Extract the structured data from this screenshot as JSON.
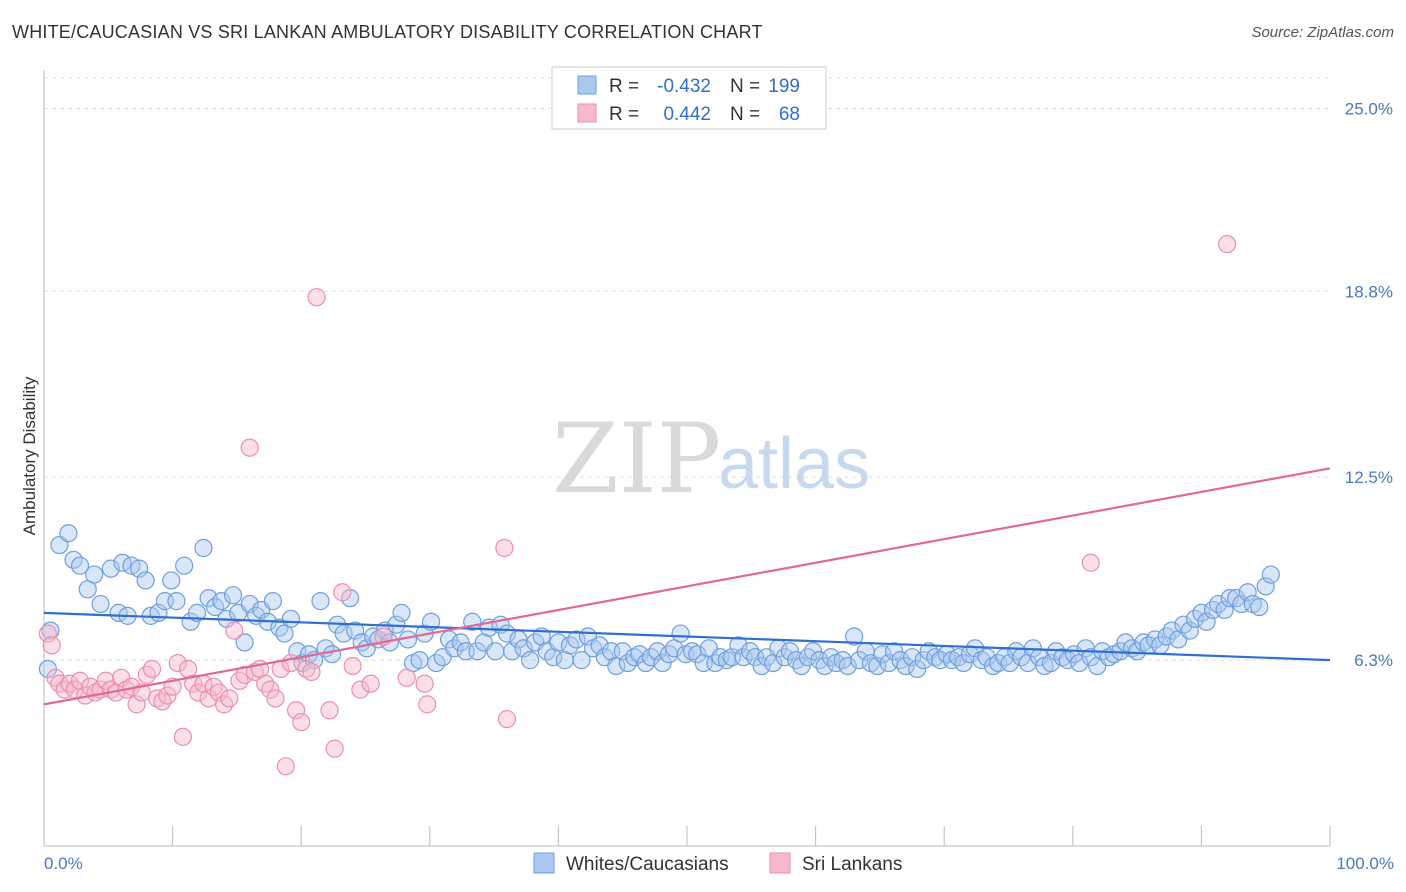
{
  "header": {
    "title": "WHITE/CAUCASIAN VS SRI LANKAN AMBULATORY DISABILITY CORRELATION CHART",
    "source": "Source: ZipAtlas.com"
  },
  "watermark": {
    "zip": "ZIP",
    "atlas": "atlas"
  },
  "colors": {
    "blue_fill": "#a9c7ef",
    "blue_stroke": "#6f9fdc",
    "blue_line": "#2f6fd0",
    "pink_fill": "#f6b8cc",
    "pink_stroke": "#ea8fae",
    "pink_line": "#e06a92",
    "grid": "#dddddd",
    "tick_label": "#4a78c0"
  },
  "legend": {
    "rows": [
      {
        "r_label": "R =",
        "r_value": "-0.432",
        "n_label": "N =",
        "n_value": "199",
        "color": "blue"
      },
      {
        "r_label": "R =",
        "r_value": "0.442",
        "n_label": "N =",
        "n_value": "68",
        "color": "pink"
      }
    ]
  },
  "chart_data": {
    "type": "scatter",
    "ylabel": "Ambulatory Disability",
    "xlim": [
      0,
      100
    ],
    "ylim": [
      0,
      26.3
    ],
    "x_tick_labels": [
      "0.0%",
      "100.0%"
    ],
    "y_ticks": [
      6.3,
      12.5,
      18.8,
      25.0
    ],
    "y_tick_labels": [
      "6.3%",
      "12.5%",
      "18.8%",
      "25.0%"
    ],
    "grid": true,
    "legend_position": "top-center",
    "series": [
      {
        "name": "Whites/Caucasians",
        "color": "blue",
        "trend": {
          "x": [
            0,
            100
          ],
          "y": [
            7.9,
            6.3
          ]
        },
        "points": [
          [
            0.5,
            7.3
          ],
          [
            1.2,
            10.2
          ],
          [
            1.9,
            10.6
          ],
          [
            2.3,
            9.7
          ],
          [
            2.8,
            9.5
          ],
          [
            3.4,
            8.7
          ],
          [
            3.9,
            9.2
          ],
          [
            4.4,
            8.2
          ],
          [
            5.2,
            9.4
          ],
          [
            5.8,
            7.9
          ],
          [
            6.1,
            9.6
          ],
          [
            6.5,
            7.8
          ],
          [
            6.8,
            9.5
          ],
          [
            7.4,
            9.4
          ],
          [
            7.9,
            9.0
          ],
          [
            8.3,
            7.8
          ],
          [
            8.9,
            7.9
          ],
          [
            9.4,
            8.3
          ],
          [
            9.9,
            9.0
          ],
          [
            10.3,
            8.3
          ],
          [
            10.9,
            9.5
          ],
          [
            11.4,
            7.6
          ],
          [
            11.9,
            7.9
          ],
          [
            12.4,
            10.1
          ],
          [
            12.8,
            8.4
          ],
          [
            13.3,
            8.1
          ],
          [
            13.8,
            8.3
          ],
          [
            14.2,
            7.7
          ],
          [
            14.7,
            8.5
          ],
          [
            15.1,
            7.9
          ],
          [
            15.6,
            6.9
          ],
          [
            16.0,
            8.2
          ],
          [
            16.5,
            7.8
          ],
          [
            16.9,
            8.0
          ],
          [
            17.4,
            7.6
          ],
          [
            17.8,
            8.3
          ],
          [
            18.3,
            7.4
          ],
          [
            18.7,
            7.2
          ],
          [
            19.2,
            7.7
          ],
          [
            19.7,
            6.6
          ],
          [
            20.1,
            6.2
          ],
          [
            20.6,
            6.5
          ],
          [
            21.0,
            6.3
          ],
          [
            21.5,
            8.3
          ],
          [
            21.9,
            6.7
          ],
          [
            22.4,
            6.5
          ],
          [
            22.8,
            7.5
          ],
          [
            23.3,
            7.2
          ],
          [
            23.8,
            8.4
          ],
          [
            24.2,
            7.3
          ],
          [
            24.7,
            6.9
          ],
          [
            25.1,
            6.7
          ],
          [
            25.6,
            7.1
          ],
          [
            26.0,
            7.0
          ],
          [
            26.5,
            7.3
          ],
          [
            26.9,
            6.9
          ],
          [
            27.4,
            7.5
          ],
          [
            27.8,
            7.9
          ],
          [
            28.3,
            7.0
          ],
          [
            28.7,
            6.2
          ],
          [
            29.2,
            6.3
          ],
          [
            29.6,
            7.2
          ],
          [
            30.1,
            7.6
          ],
          [
            30.5,
            6.2
          ],
          [
            31.0,
            6.4
          ],
          [
            31.5,
            7.0
          ],
          [
            31.9,
            6.7
          ],
          [
            32.4,
            6.9
          ],
          [
            32.8,
            6.6
          ],
          [
            33.3,
            7.6
          ],
          [
            33.7,
            6.6
          ],
          [
            34.2,
            6.9
          ],
          [
            34.6,
            7.4
          ],
          [
            35.1,
            6.6
          ],
          [
            35.5,
            7.5
          ],
          [
            36.0,
            7.2
          ],
          [
            36.4,
            6.6
          ],
          [
            36.9,
            7.0
          ],
          [
            37.3,
            6.7
          ],
          [
            37.8,
            6.3
          ],
          [
            38.2,
            6.9
          ],
          [
            38.7,
            7.1
          ],
          [
            39.1,
            6.6
          ],
          [
            39.6,
            6.4
          ],
          [
            40.0,
            6.9
          ],
          [
            40.5,
            6.3
          ],
          [
            40.9,
            6.8
          ],
          [
            41.4,
            7.0
          ],
          [
            41.8,
            6.3
          ],
          [
            42.3,
            7.1
          ],
          [
            42.7,
            6.7
          ],
          [
            43.2,
            6.8
          ],
          [
            43.6,
            6.4
          ],
          [
            44.1,
            6.6
          ],
          [
            44.5,
            6.1
          ],
          [
            45.0,
            6.6
          ],
          [
            45.4,
            6.2
          ],
          [
            45.9,
            6.4
          ],
          [
            46.3,
            6.5
          ],
          [
            46.8,
            6.2
          ],
          [
            47.2,
            6.4
          ],
          [
            47.7,
            6.6
          ],
          [
            48.1,
            6.2
          ],
          [
            48.6,
            6.5
          ],
          [
            49.0,
            6.7
          ],
          [
            49.5,
            7.2
          ],
          [
            49.9,
            6.5
          ],
          [
            50.4,
            6.6
          ],
          [
            50.8,
            6.5
          ],
          [
            51.3,
            6.2
          ],
          [
            51.7,
            6.7
          ],
          [
            52.2,
            6.2
          ],
          [
            52.6,
            6.4
          ],
          [
            53.1,
            6.3
          ],
          [
            53.5,
            6.4
          ],
          [
            54.0,
            6.8
          ],
          [
            54.4,
            6.4
          ],
          [
            54.9,
            6.6
          ],
          [
            55.3,
            6.4
          ],
          [
            55.8,
            6.1
          ],
          [
            56.2,
            6.4
          ],
          [
            56.7,
            6.2
          ],
          [
            57.1,
            6.7
          ],
          [
            57.6,
            6.4
          ],
          [
            58.0,
            6.6
          ],
          [
            58.5,
            6.3
          ],
          [
            58.9,
            6.1
          ],
          [
            59.4,
            6.4
          ],
          [
            59.8,
            6.6
          ],
          [
            60.3,
            6.3
          ],
          [
            60.7,
            6.1
          ],
          [
            61.2,
            6.4
          ],
          [
            61.6,
            6.2
          ],
          [
            62.1,
            6.3
          ],
          [
            62.5,
            6.1
          ],
          [
            63.0,
            7.1
          ],
          [
            63.4,
            6.3
          ],
          [
            63.9,
            6.6
          ],
          [
            64.3,
            6.2
          ],
          [
            64.8,
            6.1
          ],
          [
            65.2,
            6.5
          ],
          [
            65.7,
            6.2
          ],
          [
            66.1,
            6.6
          ],
          [
            66.6,
            6.3
          ],
          [
            67.0,
            6.1
          ],
          [
            67.5,
            6.4
          ],
          [
            67.9,
            6.0
          ],
          [
            68.4,
            6.3
          ],
          [
            68.8,
            6.6
          ],
          [
            69.3,
            6.4
          ],
          [
            69.7,
            6.3
          ],
          [
            70.2,
            6.5
          ],
          [
            70.6,
            6.3
          ],
          [
            71.1,
            6.4
          ],
          [
            71.5,
            6.2
          ],
          [
            72.0,
            6.5
          ],
          [
            72.4,
            6.7
          ],
          [
            72.9,
            6.3
          ],
          [
            73.3,
            6.4
          ],
          [
            73.8,
            6.1
          ],
          [
            74.2,
            6.2
          ],
          [
            74.7,
            6.4
          ],
          [
            75.1,
            6.2
          ],
          [
            75.6,
            6.6
          ],
          [
            76.0,
            6.4
          ],
          [
            76.5,
            6.2
          ],
          [
            76.9,
            6.7
          ],
          [
            77.4,
            6.4
          ],
          [
            77.8,
            6.1
          ],
          [
            78.3,
            6.2
          ],
          [
            78.7,
            6.6
          ],
          [
            79.2,
            6.4
          ],
          [
            79.6,
            6.3
          ],
          [
            80.1,
            6.5
          ],
          [
            80.5,
            6.2
          ],
          [
            81.0,
            6.7
          ],
          [
            81.4,
            6.4
          ],
          [
            81.9,
            6.1
          ],
          [
            82.3,
            6.6
          ],
          [
            82.8,
            6.4
          ],
          [
            83.2,
            6.5
          ],
          [
            83.7,
            6.6
          ],
          [
            84.1,
            6.9
          ],
          [
            84.6,
            6.7
          ],
          [
            85.0,
            6.6
          ],
          [
            85.5,
            6.9
          ],
          [
            85.9,
            6.8
          ],
          [
            86.4,
            7.0
          ],
          [
            86.8,
            6.8
          ],
          [
            87.3,
            7.1
          ],
          [
            87.7,
            7.3
          ],
          [
            88.2,
            7.0
          ],
          [
            88.6,
            7.5
          ],
          [
            89.1,
            7.3
          ],
          [
            89.5,
            7.7
          ],
          [
            90.0,
            7.9
          ],
          [
            90.4,
            7.6
          ],
          [
            90.9,
            8.0
          ],
          [
            91.3,
            8.2
          ],
          [
            91.8,
            8.0
          ],
          [
            92.2,
            8.4
          ],
          [
            92.7,
            8.4
          ],
          [
            93.1,
            8.2
          ],
          [
            93.6,
            8.6
          ],
          [
            94.0,
            8.2
          ],
          [
            94.5,
            8.1
          ],
          [
            95.0,
            8.8
          ],
          [
            95.4,
            9.2
          ],
          [
            0.3,
            6.0
          ]
        ]
      },
      {
        "name": "Sri Lankans",
        "color": "pink",
        "trend": {
          "x": [
            0,
            100
          ],
          "y": [
            4.8,
            12.8
          ]
        },
        "points": [
          [
            0.3,
            7.2
          ],
          [
            0.6,
            6.8
          ],
          [
            0.9,
            5.7
          ],
          [
            1.2,
            5.5
          ],
          [
            1.6,
            5.3
          ],
          [
            2.0,
            5.5
          ],
          [
            2.4,
            5.3
          ],
          [
            2.8,
            5.6
          ],
          [
            3.2,
            5.1
          ],
          [
            3.6,
            5.4
          ],
          [
            4.0,
            5.2
          ],
          [
            4.4,
            5.3
          ],
          [
            4.8,
            5.6
          ],
          [
            5.2,
            5.3
          ],
          [
            5.6,
            5.2
          ],
          [
            6.0,
            5.7
          ],
          [
            6.4,
            5.3
          ],
          [
            6.8,
            5.4
          ],
          [
            7.2,
            4.8
          ],
          [
            7.6,
            5.2
          ],
          [
            8.0,
            5.8
          ],
          [
            8.4,
            6.0
          ],
          [
            8.8,
            5.0
          ],
          [
            9.2,
            4.9
          ],
          [
            9.6,
            5.1
          ],
          [
            10.0,
            5.4
          ],
          [
            10.4,
            6.2
          ],
          [
            10.8,
            3.7
          ],
          [
            11.2,
            6.0
          ],
          [
            11.6,
            5.5
          ],
          [
            12.0,
            5.2
          ],
          [
            12.4,
            5.5
          ],
          [
            12.8,
            5.0
          ],
          [
            13.2,
            5.4
          ],
          [
            13.6,
            5.2
          ],
          [
            14.0,
            4.8
          ],
          [
            14.4,
            5.0
          ],
          [
            14.8,
            7.3
          ],
          [
            15.2,
            5.6
          ],
          [
            15.6,
            5.8
          ],
          [
            16.0,
            13.5
          ],
          [
            16.4,
            5.9
          ],
          [
            16.8,
            6.0
          ],
          [
            17.2,
            5.5
          ],
          [
            17.6,
            5.3
          ],
          [
            18.0,
            5.0
          ],
          [
            18.4,
            6.0
          ],
          [
            18.8,
            2.7
          ],
          [
            19.2,
            6.2
          ],
          [
            19.6,
            4.6
          ],
          [
            20.0,
            4.2
          ],
          [
            20.4,
            6.0
          ],
          [
            20.8,
            5.9
          ],
          [
            21.2,
            18.6
          ],
          [
            22.2,
            4.6
          ],
          [
            22.6,
            3.3
          ],
          [
            23.2,
            8.6
          ],
          [
            24.0,
            6.1
          ],
          [
            24.6,
            5.3
          ],
          [
            25.4,
            5.5
          ],
          [
            26.4,
            7.1
          ],
          [
            28.2,
            5.7
          ],
          [
            29.6,
            5.5
          ],
          [
            29.8,
            4.8
          ],
          [
            36.0,
            4.3
          ],
          [
            35.8,
            10.1
          ],
          [
            92.0,
            20.4
          ],
          [
            81.4,
            9.6
          ]
        ]
      }
    ]
  },
  "bottom_legend": {
    "items": [
      {
        "label": "Whites/Caucasians",
        "color": "blue"
      },
      {
        "label": "Sri Lankans",
        "color": "pink"
      }
    ]
  }
}
